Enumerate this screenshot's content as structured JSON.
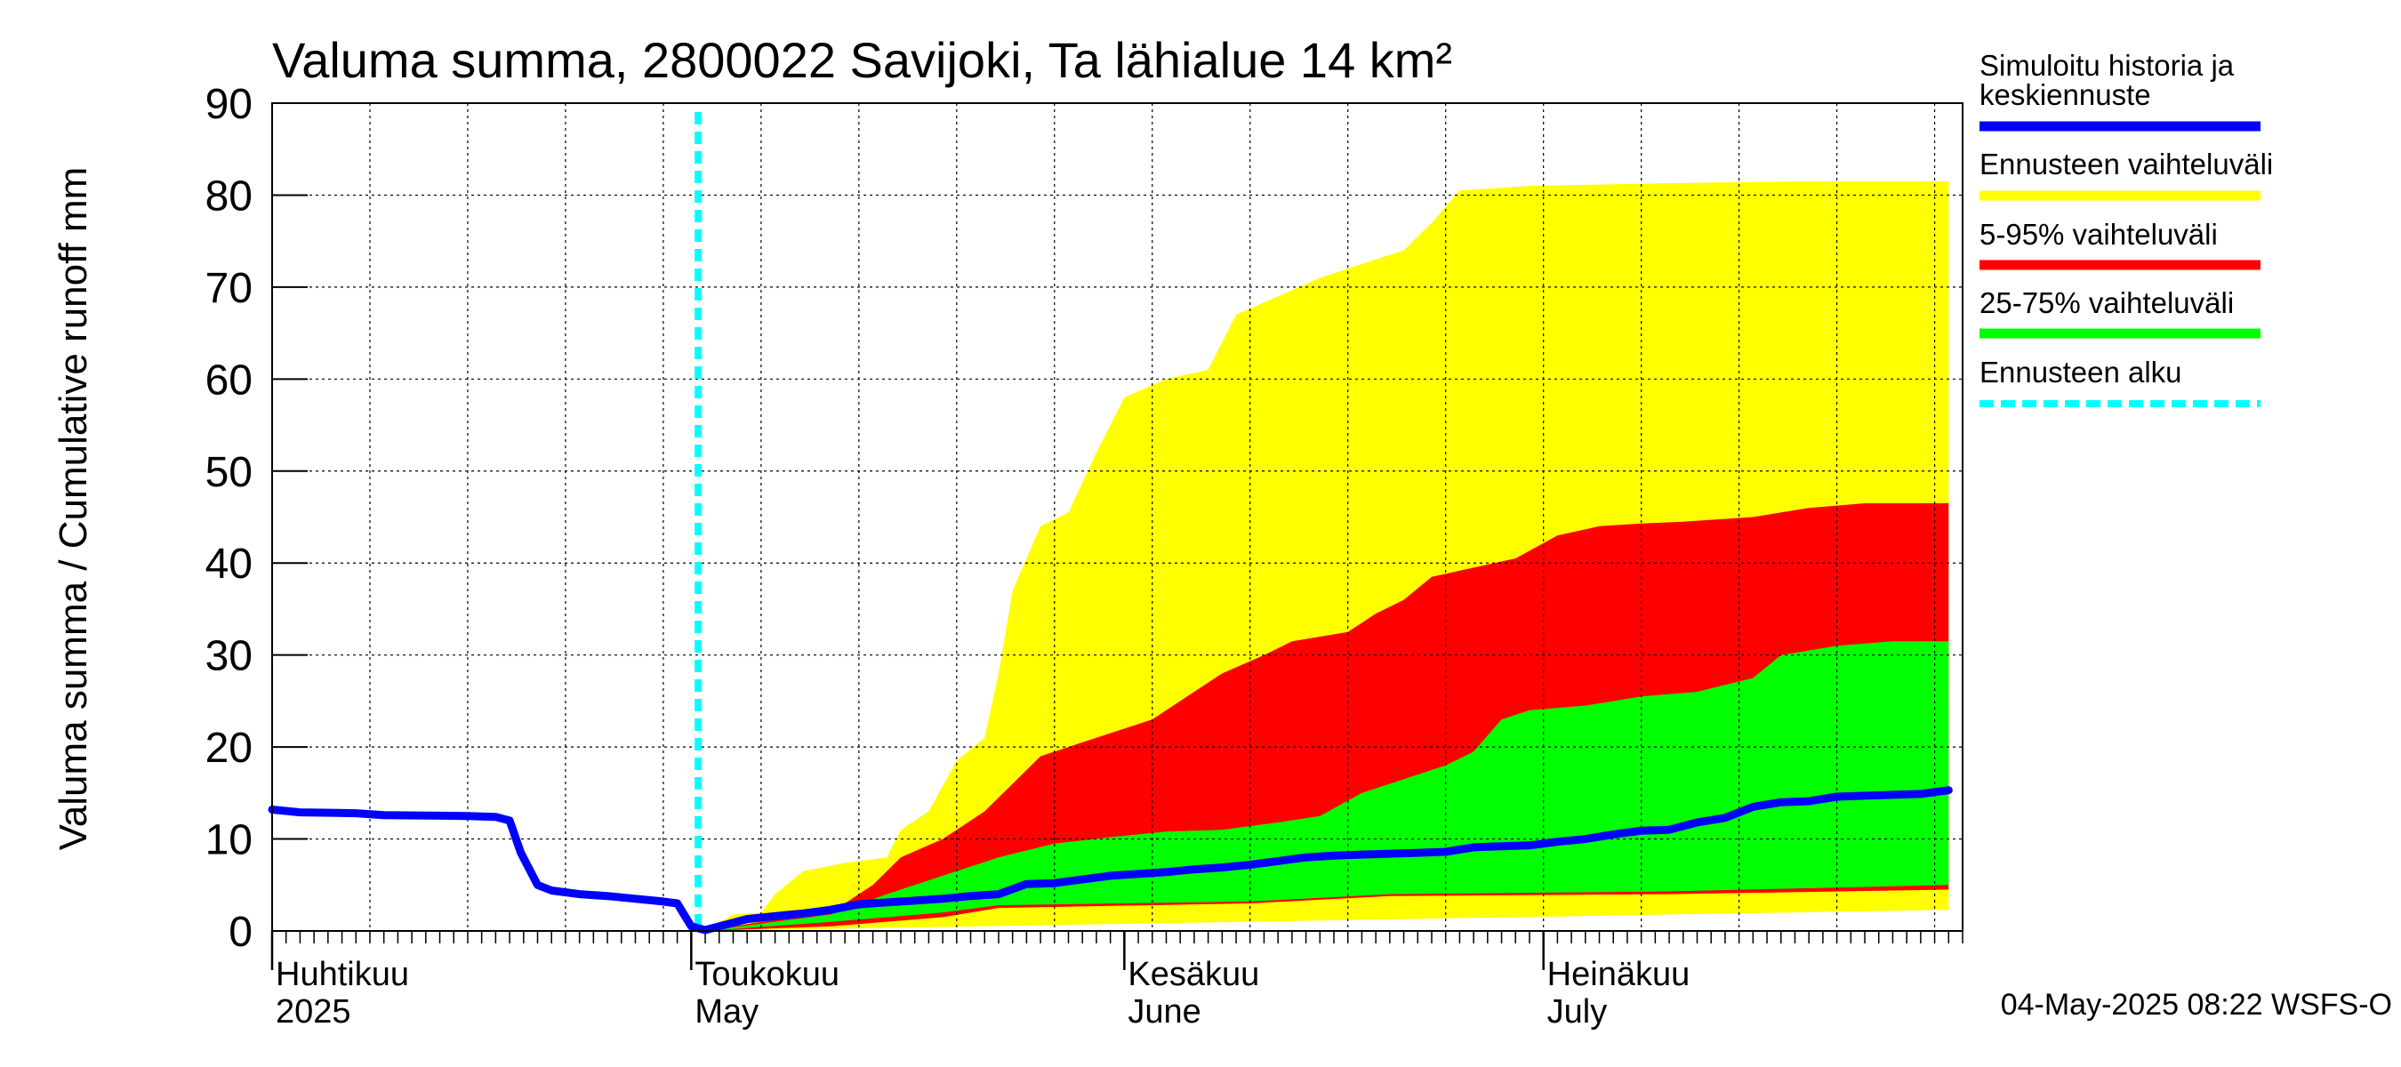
{
  "chart_data": {
    "type": "area",
    "title": "Valuma summa, 2800022 Savijoki, Ta lähialue 14 km²",
    "ylabel": "Valuma summa / Cumulative runoff    mm",
    "ylim": [
      0,
      90
    ],
    "yticks": [
      0,
      10,
      20,
      30,
      40,
      50,
      60,
      70,
      80,
      90
    ],
    "x_axis": {
      "start": "2025-04-01",
      "end": "2025-07-31",
      "unit": "day"
    },
    "month_labels": [
      {
        "fi": "Huhtikuu",
        "en": "2025",
        "day": 0
      },
      {
        "fi": "Toukokuu",
        "en": "May",
        "day": 30
      },
      {
        "fi": "Kesäkuu",
        "en": "June",
        "day": 61
      },
      {
        "fi": "Heinäkuu",
        "en": "July",
        "day": 91
      }
    ],
    "forecast_start_day": 30.5,
    "series": [
      {
        "name": "Simuloitu historia ja keskiennuste",
        "color": "#0000ff",
        "points": [
          [
            0,
            13.2
          ],
          [
            2,
            12.9
          ],
          [
            6,
            12.8
          ],
          [
            8,
            12.6
          ],
          [
            14,
            12.5
          ],
          [
            16,
            12.4
          ],
          [
            17,
            12.0
          ],
          [
            17.8,
            8.5
          ],
          [
            19,
            5.0
          ],
          [
            20,
            4.4
          ],
          [
            22,
            4.0
          ],
          [
            24,
            3.8
          ],
          [
            26,
            3.5
          ],
          [
            28,
            3.2
          ],
          [
            29,
            3.0
          ],
          [
            30,
            0.5
          ],
          [
            31,
            0.1
          ],
          [
            32,
            0.5
          ],
          [
            34,
            1.3
          ],
          [
            36,
            1.6
          ],
          [
            38,
            1.9
          ],
          [
            40,
            2.3
          ],
          [
            42,
            2.9
          ],
          [
            44,
            3.1
          ],
          [
            46,
            3.3
          ],
          [
            48,
            3.5
          ],
          [
            50,
            3.8
          ],
          [
            52,
            4.0
          ],
          [
            54,
            5.1
          ],
          [
            56,
            5.2
          ],
          [
            58,
            5.6
          ],
          [
            60,
            6.0
          ],
          [
            62,
            6.2
          ],
          [
            64,
            6.4
          ],
          [
            66,
            6.7
          ],
          [
            68,
            6.9
          ],
          [
            70,
            7.2
          ],
          [
            72,
            7.6
          ],
          [
            74,
            8.0
          ],
          [
            76,
            8.2
          ],
          [
            78,
            8.3
          ],
          [
            80,
            8.4
          ],
          [
            82,
            8.5
          ],
          [
            84,
            8.6
          ],
          [
            86,
            9.1
          ],
          [
            88,
            9.2
          ],
          [
            90,
            9.3
          ],
          [
            92,
            9.7
          ],
          [
            94,
            10.0
          ],
          [
            96,
            10.5
          ],
          [
            98,
            10.9
          ],
          [
            100,
            11.0
          ],
          [
            102,
            11.8
          ],
          [
            104,
            12.3
          ],
          [
            106,
            13.5
          ],
          [
            108,
            14.0
          ],
          [
            110,
            14.1
          ],
          [
            112,
            14.6
          ],
          [
            114,
            14.7
          ],
          [
            116,
            14.8
          ],
          [
            118,
            14.9
          ],
          [
            120,
            15.3
          ]
        ]
      },
      {
        "name": "Ennusteen vaihteluväli",
        "color": "#ffff00",
        "lower": [
          [
            31,
            0.0
          ],
          [
            120,
            2.3
          ]
        ],
        "upper": [
          [
            31,
            0.0
          ],
          [
            33,
            1.8
          ],
          [
            35,
            2.0
          ],
          [
            36,
            4.0
          ],
          [
            38,
            6.5
          ],
          [
            41,
            7.4
          ],
          [
            44,
            8.0
          ],
          [
            45,
            11.0
          ],
          [
            47,
            13.0
          ],
          [
            49,
            18.5
          ],
          [
            51,
            21.0
          ],
          [
            52,
            28.0
          ],
          [
            53,
            37.0
          ],
          [
            55,
            44.0
          ],
          [
            57,
            45.5
          ],
          [
            59,
            52.0
          ],
          [
            61,
            58.0
          ],
          [
            64,
            60.0
          ],
          [
            67,
            61.0
          ],
          [
            69,
            67.0
          ],
          [
            72,
            69.0
          ],
          [
            75,
            71.0
          ],
          [
            78,
            72.5
          ],
          [
            81,
            74.0
          ],
          [
            83,
            77.0
          ],
          [
            85,
            80.5
          ],
          [
            90,
            81.0
          ],
          [
            100,
            81.3
          ],
          [
            110,
            81.5
          ],
          [
            120,
            81.5
          ]
        ]
      },
      {
        "name": "5-95% vaihteluväli",
        "color": "#ff0000",
        "lower": [
          [
            31,
            0.0
          ],
          [
            40,
            0.5
          ],
          [
            48,
            1.5
          ],
          [
            52,
            2.5
          ],
          [
            70,
            3.0
          ],
          [
            80,
            3.8
          ],
          [
            100,
            4.0
          ],
          [
            120,
            4.5
          ]
        ],
        "upper": [
          [
            31,
            0.0
          ],
          [
            35,
            1.0
          ],
          [
            40,
            2.0
          ],
          [
            43,
            5.0
          ],
          [
            45,
            8.0
          ],
          [
            48,
            10.0
          ],
          [
            51,
            13.0
          ],
          [
            53,
            16.0
          ],
          [
            55,
            19.0
          ],
          [
            58,
            20.5
          ],
          [
            61,
            22.0
          ],
          [
            63,
            23.0
          ],
          [
            66,
            26.0
          ],
          [
            68,
            28.0
          ],
          [
            71,
            30.0
          ],
          [
            73,
            31.5
          ],
          [
            77,
            32.5
          ],
          [
            79,
            34.5
          ],
          [
            81,
            36.0
          ],
          [
            83,
            38.5
          ],
          [
            86,
            39.5
          ],
          [
            89,
            40.5
          ],
          [
            92,
            43.0
          ],
          [
            95,
            44.0
          ],
          [
            98,
            44.3
          ],
          [
            101,
            44.5
          ],
          [
            106,
            45.0
          ],
          [
            110,
            46.0
          ],
          [
            114,
            46.5
          ],
          [
            120,
            46.5
          ]
        ]
      },
      {
        "name": "25-75% vaihteluväli",
        "color": "#00ff00",
        "lower": [
          [
            31,
            0.0
          ],
          [
            40,
            1.0
          ],
          [
            48,
            2.0
          ],
          [
            52,
            2.8
          ],
          [
            70,
            3.2
          ],
          [
            80,
            4.0
          ],
          [
            100,
            4.3
          ],
          [
            120,
            5.0
          ]
        ],
        "upper": [
          [
            31,
            0.0
          ],
          [
            35,
            0.8
          ],
          [
            40,
            1.8
          ],
          [
            44,
            4.0
          ],
          [
            48,
            6.0
          ],
          [
            52,
            8.0
          ],
          [
            56,
            9.5
          ],
          [
            60,
            10.2
          ],
          [
            64,
            10.8
          ],
          [
            68,
            11.0
          ],
          [
            72,
            11.8
          ],
          [
            75,
            12.5
          ],
          [
            78,
            15.0
          ],
          [
            80,
            16.0
          ],
          [
            82,
            17.0
          ],
          [
            84,
            18.0
          ],
          [
            86,
            19.5
          ],
          [
            88,
            23.0
          ],
          [
            90,
            24.0
          ],
          [
            94,
            24.5
          ],
          [
            98,
            25.5
          ],
          [
            102,
            26.0
          ],
          [
            106,
            27.5
          ],
          [
            108,
            30.0
          ],
          [
            112,
            31.0
          ],
          [
            116,
            31.5
          ],
          [
            120,
            31.5
          ]
        ]
      },
      {
        "name": "Ennusteen alku",
        "color": "#00ffff",
        "style": "dashed",
        "day": 30.5
      }
    ],
    "legend_position": "right"
  },
  "legend": [
    {
      "label": "Simuloitu historia ja\nkeskiennuste",
      "line1": "Simuloitu historia ja",
      "line2": "keskiennuste",
      "color": "#0000ff"
    },
    {
      "label": "Ennusteen vaihteluväli",
      "color": "#ffff00"
    },
    {
      "label": "5-95% vaihteluväli",
      "color": "#ff0000"
    },
    {
      "label": "25-75% vaihteluväli",
      "color": "#00ff00"
    },
    {
      "label": "Ennusteen alku",
      "color": "#00ffff"
    }
  ],
  "footer": {
    "timestamp": "04-May-2025 08:22 WSFS-O"
  }
}
